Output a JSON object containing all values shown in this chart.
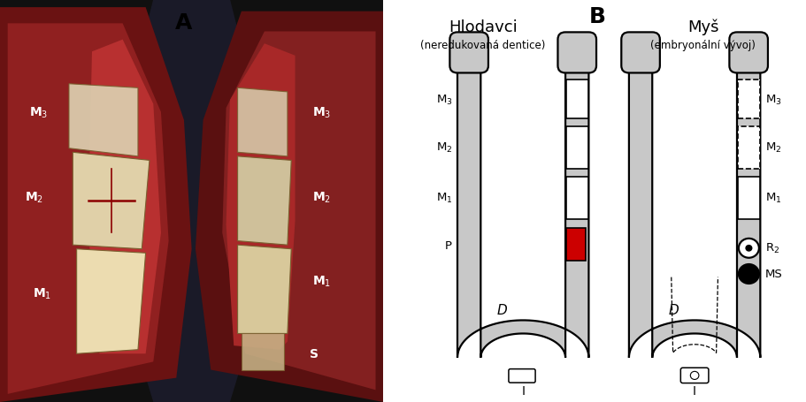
{
  "panel_A_label": "A",
  "panel_B_label": "B",
  "hlodavci_title": "Hlodavci",
  "mys_title": "Myš",
  "hlodavci_subtitle": "(neredukovaná dentice)",
  "mys_subtitle": "(embryonální vývoj)",
  "jaw_fill": "#c8c8c8",
  "jaw_edge": "#000000",
  "white": "#ffffff",
  "red": "#cc0000",
  "black": "#000000",
  "bg": "#ffffff"
}
